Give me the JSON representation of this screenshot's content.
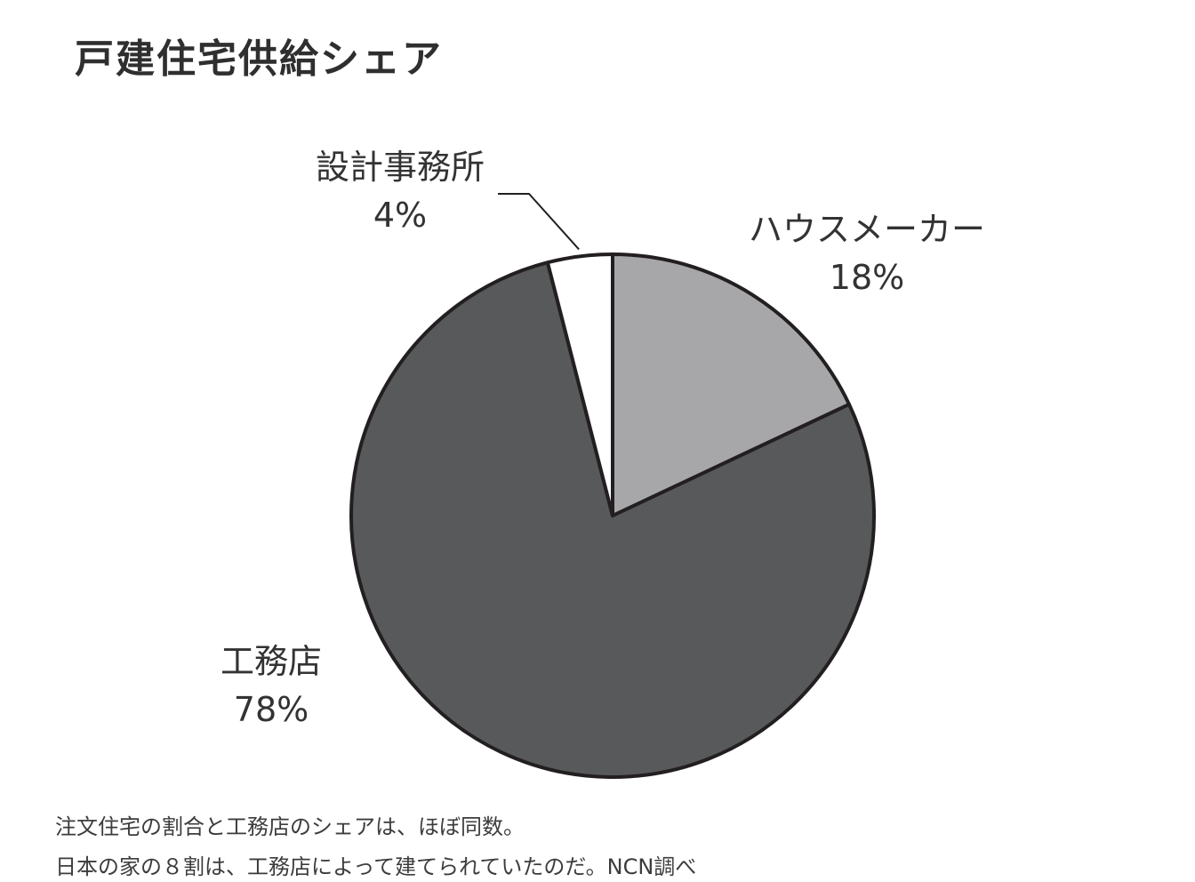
{
  "title": "戸建住宅供給シェア",
  "chart_data": {
    "type": "pie",
    "title": "戸建住宅供給シェア",
    "categories": [
      "ハウスメーカー",
      "工務店",
      "設計事務所"
    ],
    "values": [
      18,
      78,
      4
    ],
    "value_labels": [
      "18%",
      "78%",
      "4%"
    ],
    "colors": [
      "#a7a7a9",
      "#58595b",
      "#ffffff"
    ],
    "outline_color": "#231f20"
  },
  "notes": [
    "注文住宅の割合と工務店のシェアは、ほぼ同数。",
    "日本の家の８割は、工務店によって建てられていたのだ。NCN調べ"
  ]
}
